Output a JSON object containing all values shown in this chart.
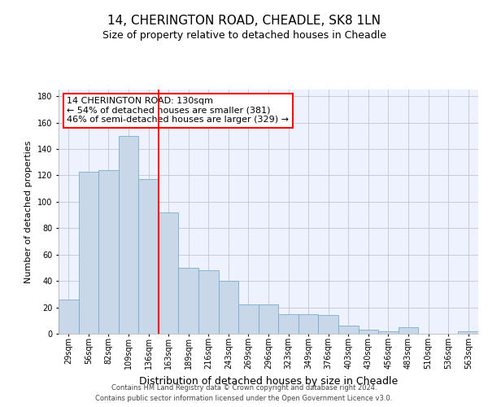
{
  "title1": "14, CHERINGTON ROAD, CHEADLE, SK8 1LN",
  "title2": "Size of property relative to detached houses in Cheadle",
  "xlabel": "Distribution of detached houses by size in Cheadle",
  "ylabel": "Number of detached properties",
  "footer1": "Contains HM Land Registry data © Crown copyright and database right 2024.",
  "footer2": "Contains public sector information licensed under the Open Government Licence v3.0.",
  "annotation_line1": "14 CHERINGTON ROAD: 130sqm",
  "annotation_line2": "← 54% of detached houses are smaller (381)",
  "annotation_line3": "46% of semi-detached houses are larger (329) →",
  "bar_labels": [
    "29sqm",
    "56sqm",
    "82sqm",
    "109sqm",
    "136sqm",
    "163sqm",
    "189sqm",
    "216sqm",
    "243sqm",
    "269sqm",
    "296sqm",
    "323sqm",
    "349sqm",
    "376sqm",
    "403sqm",
    "430sqm",
    "456sqm",
    "483sqm",
    "510sqm",
    "536sqm",
    "563sqm"
  ],
  "bar_values": [
    26,
    123,
    124,
    150,
    117,
    92,
    50,
    48,
    40,
    22,
    22,
    15,
    15,
    14,
    6,
    3,
    2,
    5,
    0,
    0,
    2
  ],
  "bar_color": "#c8d8e8",
  "bar_edge_color": "#7aabcf",
  "vline_color": "red",
  "vline_pos": 4.5,
  "ylim": [
    0,
    185
  ],
  "yticks": [
    0,
    20,
    40,
    60,
    80,
    100,
    120,
    140,
    160,
    180
  ],
  "annotation_box_color": "white",
  "annotation_box_edge": "red",
  "bg_color": "#eef2ff",
  "grid_color": "#bbbbcc",
  "title1_fontsize": 11,
  "title2_fontsize": 9,
  "xlabel_fontsize": 9,
  "ylabel_fontsize": 8,
  "tick_fontsize": 7,
  "footer_fontsize": 6,
  "ann_fontsize": 8
}
